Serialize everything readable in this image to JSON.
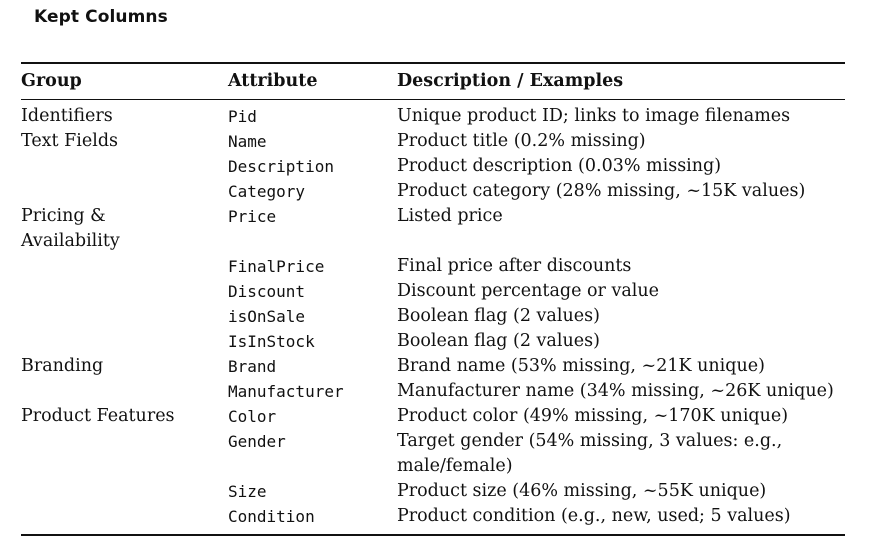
{
  "title": "Kept Columns",
  "headers": {
    "group": "Group",
    "attribute": "Attribute",
    "description": "Description / Examples"
  },
  "rows": [
    {
      "group": "Identifiers",
      "attribute": "Pid",
      "description": "Unique product ID; links to image filenames"
    },
    {
      "group": "Text Fields",
      "attribute": "Name",
      "description": "Product title (0.2% missing)"
    },
    {
      "group": "",
      "attribute": "Description",
      "description": "Product description (0.03% missing)"
    },
    {
      "group": "",
      "attribute": "Category",
      "description": "Product category (28% missing, ~15K values)"
    },
    {
      "group": "Pricing & Availability",
      "attribute": "Price",
      "description": "Listed price"
    },
    {
      "group": "",
      "attribute": "FinalPrice",
      "description": "Final price after discounts"
    },
    {
      "group": "",
      "attribute": "Discount",
      "description": "Discount percentage or value"
    },
    {
      "group": "",
      "attribute": "isOnSale",
      "description": "Boolean flag (2 values)"
    },
    {
      "group": "",
      "attribute": "IsInStock",
      "description": "Boolean flag (2 values)"
    },
    {
      "group": "Branding",
      "attribute": "Brand",
      "description": "Brand name (53% missing, ~21K unique)"
    },
    {
      "group": "",
      "attribute": "Manufacturer",
      "description": "Manufacturer name (34% missing, ~26K unique)"
    },
    {
      "group": "Product Features",
      "attribute": "Color",
      "description": "Product color (49% missing, ~170K unique)"
    },
    {
      "group": "",
      "attribute": "Gender",
      "description": "Target gender (54% missing, 3 values: e.g., male/female)"
    },
    {
      "group": "",
      "attribute": "Size",
      "description": "Product size (46% missing, ~55K unique)"
    },
    {
      "group": "",
      "attribute": "Condition",
      "description": "Product condition (e.g., new, used; 5 values)"
    }
  ]
}
